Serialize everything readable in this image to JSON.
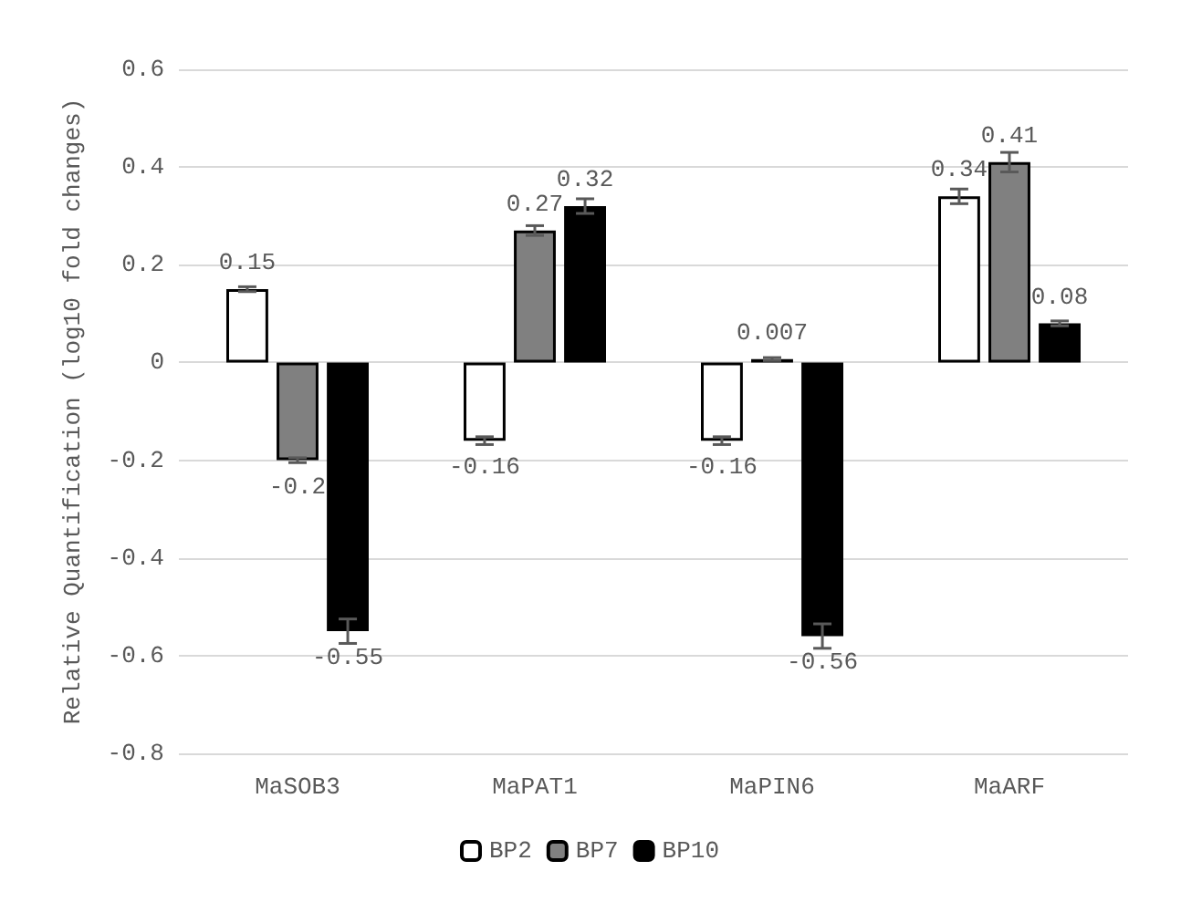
{
  "chart_data": {
    "type": "bar",
    "ylabel": "Relative Quantification (log10 fold changes)",
    "categories": [
      "MaSOB3",
      "MaPAT1",
      "MaPIN6",
      "MaARF"
    ],
    "series": [
      {
        "name": "BP2",
        "color": "#ffffff",
        "values": [
          0.15,
          -0.16,
          -0.16,
          0.34
        ],
        "errors": [
          0.005,
          0.008,
          0.008,
          0.015
        ]
      },
      {
        "name": "BP7",
        "color": "#808080",
        "values": [
          -0.2,
          0.27,
          0.007,
          0.41
        ],
        "errors": [
          0.005,
          0.01,
          0.003,
          0.02
        ]
      },
      {
        "name": "BP10",
        "color": "#000000",
        "values": [
          -0.55,
          0.32,
          -0.56,
          0.08
        ],
        "errors": [
          0.025,
          0.015,
          0.025,
          0.005
        ]
      }
    ],
    "ylim": [
      -0.8,
      0.6
    ],
    "yticks": [
      -0.8,
      -0.6,
      -0.4,
      -0.2,
      0,
      0.2,
      0.4,
      0.6
    ],
    "grid": "y",
    "legend": "bottom",
    "data_labels": true
  }
}
